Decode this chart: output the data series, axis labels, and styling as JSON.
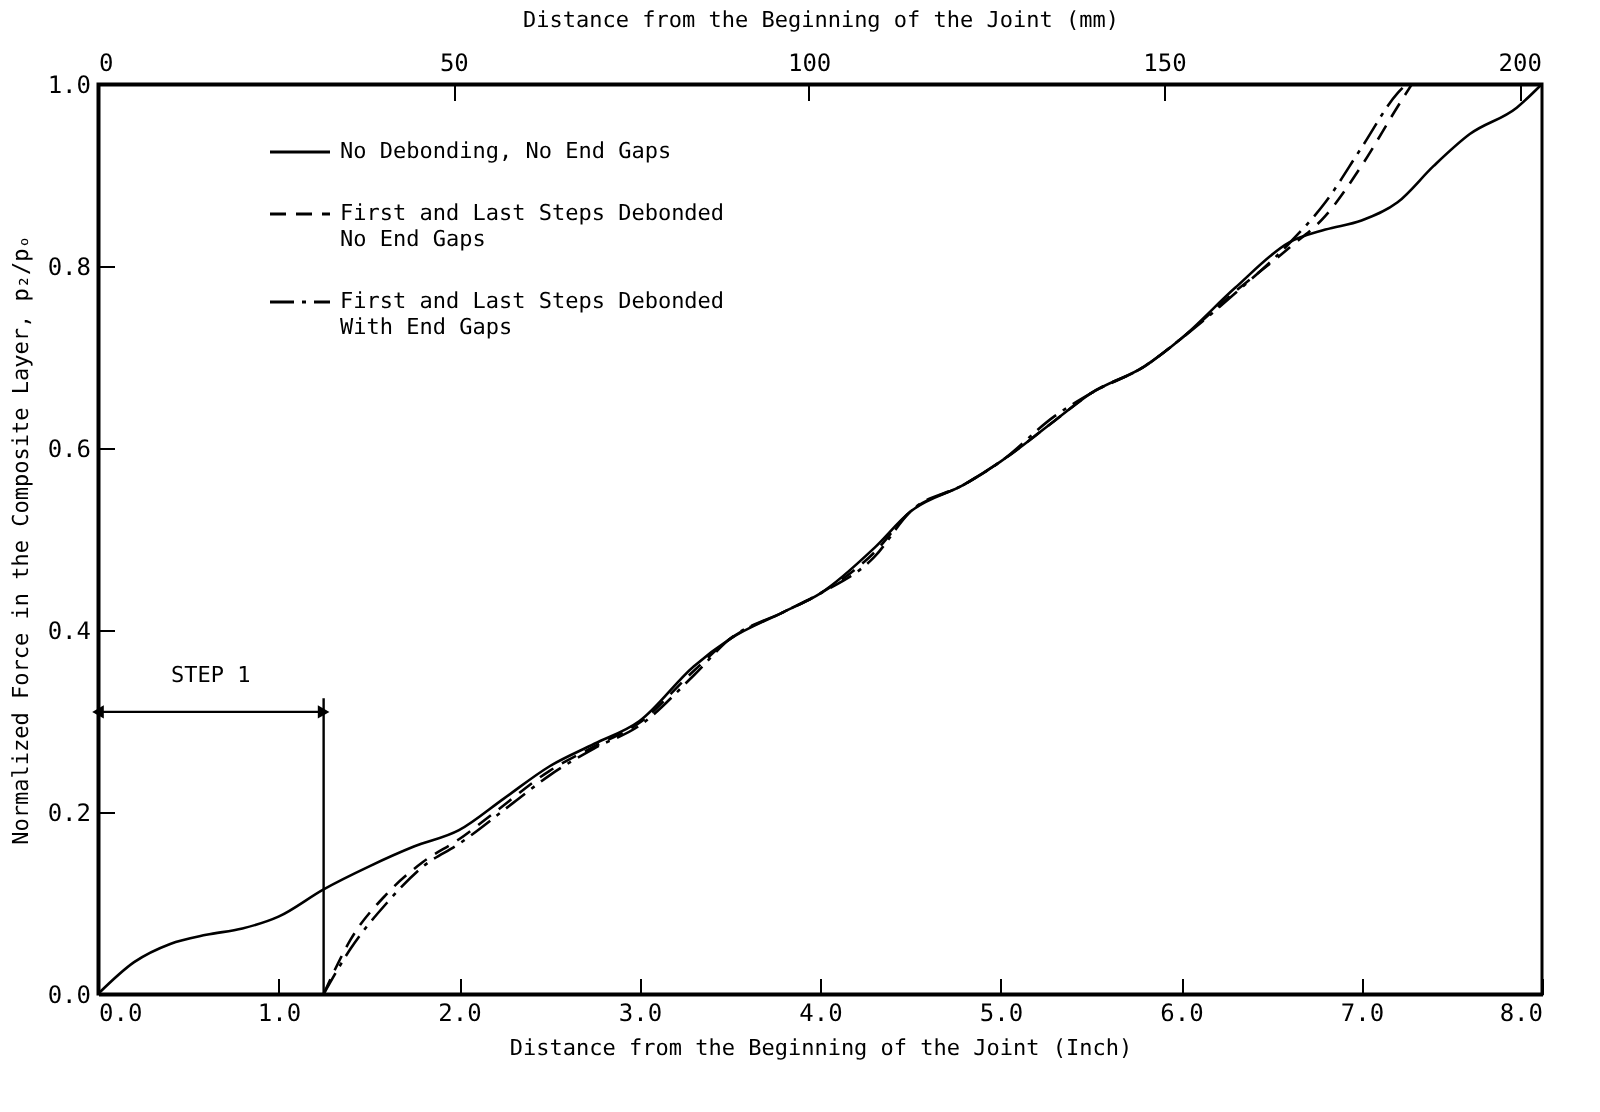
{
  "chart_data": {
    "type": "line",
    "xlabel": "Distance from the Beginning of the Joint (Inch)",
    "x2label": "Distance from the Beginning of the Joint (mm)",
    "ylabel": "Normalized Force in the Composite Layer, p₂/pₒ",
    "xlim": [
      0,
      8
    ],
    "xticks": [
      {
        "value": 0,
        "label": "0.0"
      },
      {
        "value": 1,
        "label": "1.0"
      },
      {
        "value": 2,
        "label": "2.0"
      },
      {
        "value": 3,
        "label": "3.0"
      },
      {
        "value": 4,
        "label": "4.0"
      },
      {
        "value": 5,
        "label": "5.0"
      },
      {
        "value": 6,
        "label": "6.0"
      },
      {
        "value": 7,
        "label": "7.0"
      },
      {
        "value": 8,
        "label": "8.0"
      }
    ],
    "x2lim": [
      0,
      203.2
    ],
    "x2ticks": [
      0,
      50,
      100,
      150,
      200
    ],
    "ylim": [
      0,
      1
    ],
    "yticks": [
      {
        "value": 0,
        "label": "0.0"
      },
      {
        "value": 0.2,
        "label": "0.2"
      },
      {
        "value": 0.4,
        "label": "0.4"
      },
      {
        "value": 0.6,
        "label": "0.6"
      },
      {
        "value": 0.8,
        "label": "0.8"
      },
      {
        "value": 1,
        "label": "1.0"
      }
    ],
    "grid": false,
    "legend": "top left",
    "annotations": [
      "STEP 1"
    ],
    "ref_lines": [
      {
        "axis": "x",
        "value": 1.25
      }
    ],
    "series": [
      {
        "name": "No Debonding, No End Gaps",
        "color": "#000000",
        "line_style": "solid",
        "x": [
          0,
          0.2,
          0.4,
          0.6,
          0.8,
          1.0,
          1.25,
          1.5,
          1.75,
          2.0,
          2.25,
          2.5,
          2.75,
          3.0,
          3.3,
          3.5,
          3.8,
          4.0,
          4.3,
          4.5,
          4.8,
          5.0,
          5.3,
          5.5,
          5.8,
          6.0,
          6.3,
          6.6,
          6.8,
          7.0,
          7.2,
          7.4,
          7.6,
          7.86,
          8.0
        ],
        "values": [
          0,
          0.035,
          0.055,
          0.065,
          0.072,
          0.085,
          0.115,
          0.14,
          0.162,
          0.18,
          0.215,
          0.25,
          0.275,
          0.3,
          0.36,
          0.39,
          0.42,
          0.44,
          0.49,
          0.53,
          0.56,
          0.585,
          0.63,
          0.66,
          0.69,
          0.72,
          0.776,
          0.826,
          0.84,
          0.85,
          0.87,
          0.91,
          0.945,
          0.974,
          1.0
        ]
      },
      {
        "name": "First and Last Steps Debonded\nNo End Gaps",
        "color": "#000000",
        "line_style": "dashed",
        "x": [
          1.25,
          1.4,
          1.6,
          1.8,
          2.0,
          2.2,
          2.5,
          2.75,
          3.0,
          3.3,
          3.5,
          3.8,
          4.0,
          4.3,
          4.5,
          4.8,
          5.0,
          5.3,
          5.5,
          5.8,
          6.0,
          6.3,
          6.6,
          6.8,
          7.0,
          7.2,
          7.28
        ],
        "values": [
          0,
          0.06,
          0.11,
          0.145,
          0.17,
          0.2,
          0.245,
          0.272,
          0.298,
          0.355,
          0.39,
          0.42,
          0.44,
          0.485,
          0.53,
          0.56,
          0.585,
          0.63,
          0.66,
          0.69,
          0.72,
          0.772,
          0.82,
          0.855,
          0.91,
          0.975,
          1.0
        ]
      },
      {
        "name": "First and Last Steps Debonded\nWith End Gaps",
        "color": "#000000",
        "line_style": "dashdot",
        "x": [
          1.25,
          1.4,
          1.6,
          1.8,
          2.0,
          2.3,
          2.5,
          2.75,
          3.0,
          3.3,
          3.5,
          3.8,
          4.0,
          4.3,
          4.5,
          4.8,
          5.0,
          5.3,
          5.5,
          5.8,
          6.0,
          6.3,
          6.6,
          6.8,
          7.0,
          7.2,
          7.25
        ],
        "values": [
          0,
          0.05,
          0.1,
          0.14,
          0.165,
          0.21,
          0.24,
          0.27,
          0.295,
          0.35,
          0.39,
          0.42,
          0.44,
          0.48,
          0.53,
          0.56,
          0.585,
          0.635,
          0.66,
          0.69,
          0.72,
          0.77,
          0.825,
          0.87,
          0.93,
          0.99,
          1.0
        ]
      }
    ]
  }
}
